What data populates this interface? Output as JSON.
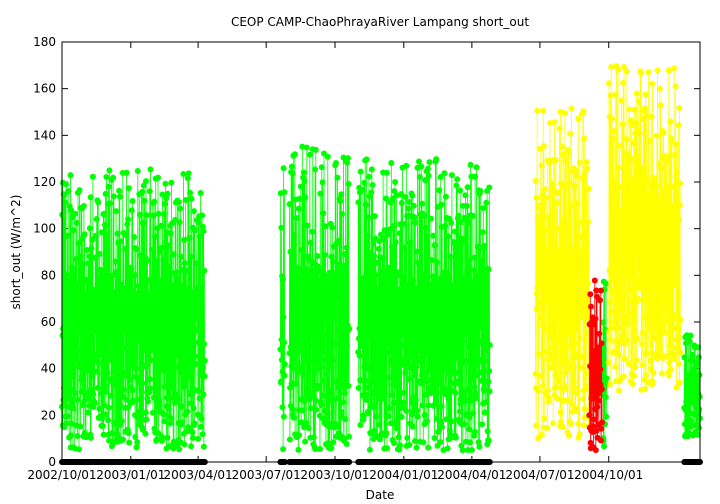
{
  "chart_data": {
    "type": "scatter",
    "title": "CEOP CAMP-ChaoPhrayaRiver Lampang  short_out",
    "xlabel": "Date",
    "ylabel": "short_out (W/m^2)",
    "ylim": [
      0,
      180
    ],
    "yticks": [
      0,
      20,
      40,
      60,
      80,
      100,
      120,
      140,
      160,
      180
    ],
    "xlim": [
      "2002-10-01",
      "2005-01-31"
    ],
    "xticks": [
      {
        "date": "2002-10-01",
        "label": "2002/10/01"
      },
      {
        "date": "2003-01-01",
        "label": "2003/01/01"
      },
      {
        "date": "2003-04-01",
        "label": "2003/04/01"
      },
      {
        "date": "2003-07-01",
        "label": "2003/07/01"
      },
      {
        "date": "2003-10-01",
        "label": "2003/10/01"
      },
      {
        "date": "2004-01-01",
        "label": "2004/01/01"
      },
      {
        "date": "2004-04-01",
        "label": "2004/04/01"
      },
      {
        "date": "2004-07-01",
        "label": "2004/07/01"
      },
      {
        "date": "2004-10-01",
        "label": "2004/10/01"
      }
    ],
    "grid": false,
    "legend": "none",
    "series": [
      {
        "color": "#00ff00",
        "flag": "good",
        "segments": [
          {
            "start": "2002-10-01",
            "end": "2003-04-10",
            "min": 5,
            "max": 126
          },
          {
            "start": "2003-07-20",
            "end": "2003-07-26",
            "min": 5,
            "max": 135
          },
          {
            "start": "2003-08-01",
            "end": "2003-10-20",
            "min": 5,
            "max": 137
          },
          {
            "start": "2003-11-01",
            "end": "2004-04-25",
            "min": 5,
            "max": 130
          },
          {
            "start": "2004-09-22",
            "end": "2004-09-28",
            "min": 5,
            "max": 78
          },
          {
            "start": "2005-01-10",
            "end": "2005-01-31",
            "min": 10,
            "max": 55
          }
        ]
      },
      {
        "color": "#ffff00",
        "flag": "questionable",
        "segments": [
          {
            "start": "2004-06-25",
            "end": "2004-09-05",
            "min": 10,
            "max": 152
          },
          {
            "start": "2004-10-01",
            "end": "2005-01-05",
            "min": 30,
            "max": 171
          }
        ]
      },
      {
        "color": "#ff0000",
        "flag": "bad",
        "segments": [
          {
            "start": "2004-09-05",
            "end": "2004-09-22",
            "min": 5,
            "max": 78
          }
        ]
      },
      {
        "color": "#000000",
        "flag": "missing",
        "segments": [
          {
            "start": "2002-10-01",
            "end": "2003-04-10",
            "value": 0
          },
          {
            "start": "2003-07-20",
            "end": "2003-07-26",
            "value": 0
          },
          {
            "start": "2003-08-01",
            "end": "2003-10-20",
            "value": 0
          },
          {
            "start": "2003-11-01",
            "end": "2004-04-25",
            "value": 0
          },
          {
            "start": "2005-01-10",
            "end": "2005-01-31",
            "value": 0
          }
        ]
      }
    ]
  }
}
